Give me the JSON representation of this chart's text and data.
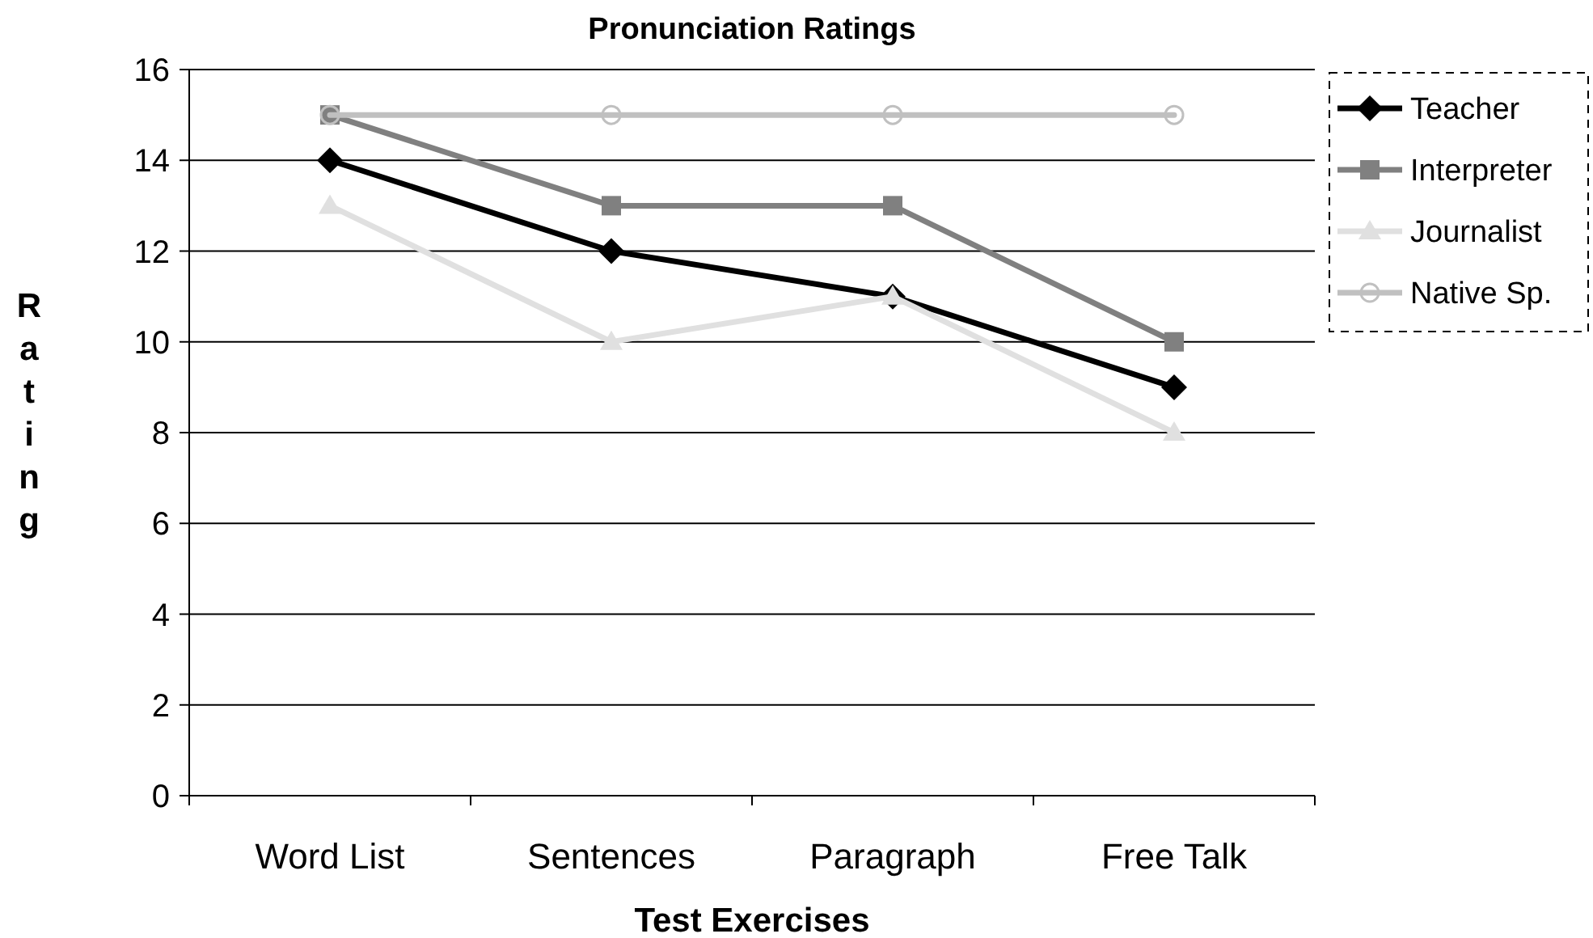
{
  "chart_data": {
    "type": "line",
    "title": "Pronunciation Ratings",
    "xlabel": "Test Exercises",
    "ylabel": "Rating",
    "categories": [
      "Word List",
      "Sentences",
      "Paragraph",
      "Free Talk"
    ],
    "series": [
      {
        "name": "Teacher",
        "color": "#000000",
        "marker": "diamond",
        "values": [
          14,
          12,
          11,
          9
        ]
      },
      {
        "name": "Interpreter",
        "color": "#808080",
        "marker": "square",
        "values": [
          15,
          13,
          13,
          10
        ]
      },
      {
        "name": "Journalist",
        "color": "#e0e0e0",
        "marker": "triangle",
        "values": [
          13,
          10,
          11,
          8
        ]
      },
      {
        "name": "Native Sp.",
        "color": "#c0c0c0",
        "marker": "circle",
        "values": [
          15,
          15,
          15,
          15
        ]
      }
    ],
    "ylim": [
      0,
      16
    ],
    "yticks": [
      0,
      2,
      4,
      6,
      8,
      10,
      12,
      14,
      16
    ],
    "grid": "y",
    "legend": "top right",
    "line_style": "solid"
  }
}
